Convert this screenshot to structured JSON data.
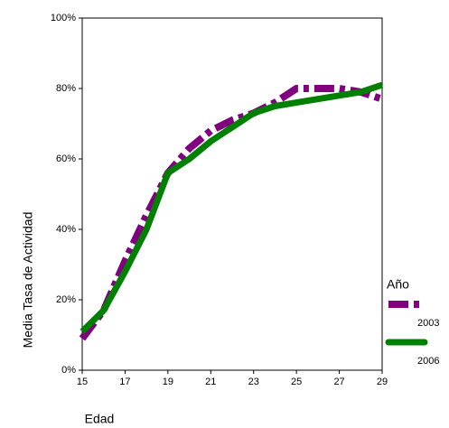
{
  "chart_data": {
    "type": "line",
    "x_label": "Edad",
    "y_label": "Media Tasa de Actividad",
    "x": [
      15,
      16,
      17,
      18,
      19,
      20,
      21,
      22,
      23,
      24,
      25,
      26,
      27,
      28,
      29
    ],
    "series": [
      {
        "name": "2003",
        "color": "#800080",
        "dashed": true,
        "values": [
          9,
          17,
          31,
          44,
          56,
          63,
          68,
          71,
          73,
          76,
          80,
          80,
          80,
          79,
          77
        ]
      },
      {
        "name": "2006",
        "color": "#008000",
        "dashed": false,
        "values": [
          11,
          17,
          28,
          40,
          56,
          60,
          65,
          69,
          73,
          75,
          76,
          77,
          78,
          79,
          81
        ]
      }
    ],
    "legend_title": "Año",
    "legend_position": "right",
    "xlim": [
      15,
      29
    ],
    "xticks": [
      15,
      17,
      19,
      21,
      23,
      25,
      27,
      29
    ],
    "ylim": [
      0,
      100
    ],
    "yticks": [
      {
        "value": 0,
        "label": "0%"
      },
      {
        "value": 20,
        "label": "20%"
      },
      {
        "value": 40,
        "label": "40%"
      },
      {
        "value": 60,
        "label": "60%"
      },
      {
        "value": 80,
        "label": "80%"
      },
      {
        "value": 100,
        "label": "100%"
      }
    ],
    "grid": false
  }
}
